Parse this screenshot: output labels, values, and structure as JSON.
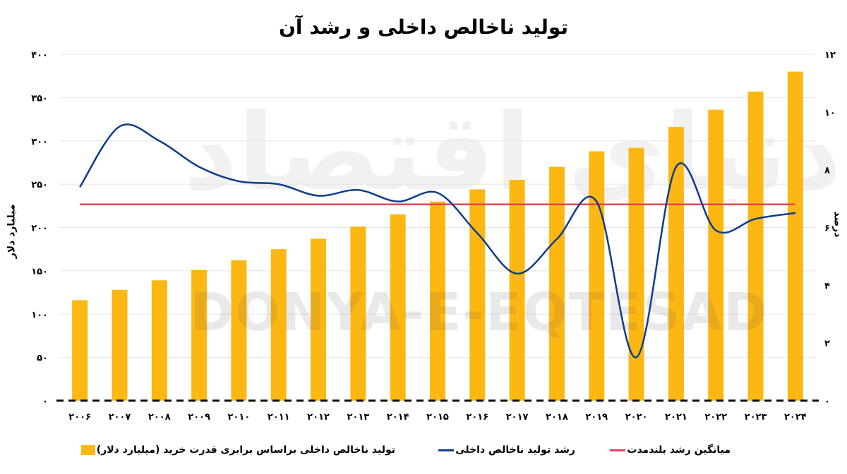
{
  "chart_data": {
    "type": "bar+line",
    "title": "تولید ناخالص داخلی و رشد آن",
    "ylabel_left": "میلیارد دلار",
    "ylabel_right": "درصد",
    "ylim_left": [
      0,
      400
    ],
    "ylim_right": [
      0,
      12
    ],
    "yticks_left": [
      "۰",
      "۵۰",
      "۱۰۰",
      "۱۵۰",
      "۲۰۰",
      "۲۵۰",
      "۳۰۰",
      "۳۵۰",
      "۴۰۰"
    ],
    "yticks_right": [
      "۰",
      "۲",
      "۴",
      "۶",
      "۸",
      "۱۰",
      "۱۲"
    ],
    "categories": [
      "۲۰۰۶",
      "۲۰۰۷",
      "۲۰۰۸",
      "۲۰۰۹",
      "۲۰۱۰",
      "۲۰۱۱",
      "۲۰۱۲",
      "۲۰۱۳",
      "۲۰۱۴",
      "۲۰۱۵",
      "۲۰۱۶",
      "۲۰۱۷",
      "۲۰۱۸",
      "۲۰۱۹",
      "۲۰۲۰",
      "۲۰۲۱",
      "۲۰۲۲",
      "۲۰۲۳",
      "۲۰۲۴"
    ],
    "grid": true,
    "legend_position": "bottom",
    "series": [
      {
        "name": "تولید ناخالص داخلی براساس برابری قدرت خرید (میلیارد دلار)",
        "type": "bar",
        "axis": "left",
        "color": "#FDB713",
        "values": [
          116,
          128,
          139,
          151,
          162,
          175,
          187,
          201,
          215,
          230,
          244,
          255,
          270,
          288,
          292,
          316,
          336,
          357,
          380
        ]
      },
      {
        "name": "رشد تولید ناخالص داخلی",
        "type": "line",
        "axis": "right",
        "color": "#0B3C8C",
        "values": [
          7.4,
          9.5,
          9.0,
          8.1,
          7.6,
          7.5,
          7.1,
          7.3,
          6.9,
          7.2,
          5.8,
          4.4,
          5.6,
          6.9,
          1.5,
          8.1,
          5.9,
          6.3,
          6.5
        ]
      },
      {
        "name": "میانگین رشد بلندمدت",
        "type": "line",
        "axis": "right",
        "color": "#E8435A",
        "values": [
          6.8,
          6.8,
          6.8,
          6.8,
          6.8,
          6.8,
          6.8,
          6.8,
          6.8,
          6.8,
          6.8,
          6.8,
          6.8,
          6.8,
          6.8,
          6.8,
          6.8,
          6.8,
          6.8
        ]
      }
    ]
  },
  "watermark": "DONYA-E-EQTESAD",
  "watermark_logo": "دنیای اقتصاد"
}
